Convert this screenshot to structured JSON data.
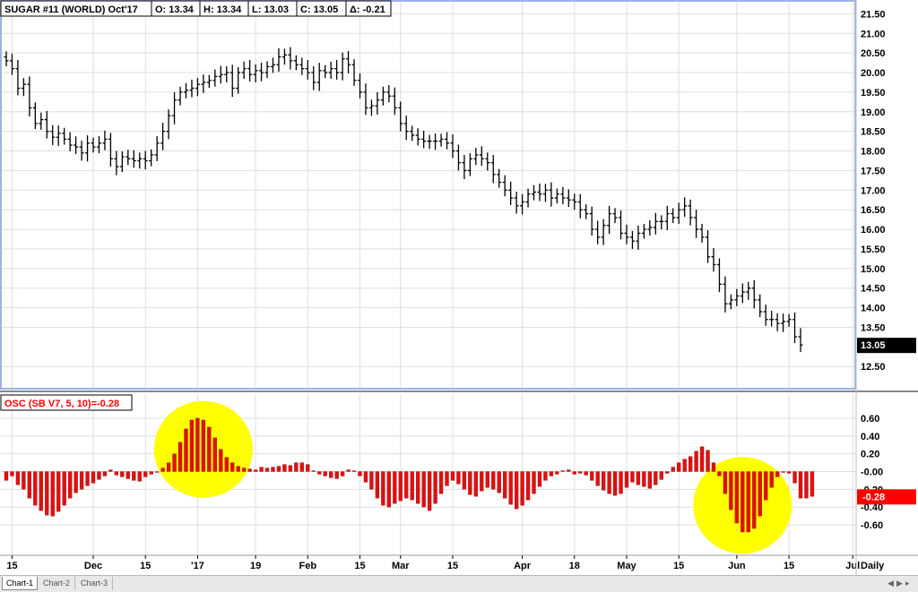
{
  "chart_data": [
    {
      "type": "ohlc",
      "header": {
        "symbol": "SUGAR #11 (WORLD) Oct'17",
        "open": "O: 13.34",
        "high": "H: 13.34",
        "low": "L: 13.03",
        "close": "C: 13.05",
        "change": "Δ: -0.21"
      },
      "ylim": [
        12.3,
        21.6
      ],
      "y_ticks": [
        "21.50",
        "21.00",
        "20.50",
        "20.00",
        "19.50",
        "19.00",
        "18.50",
        "18.00",
        "17.50",
        "17.00",
        "16.50",
        "16.00",
        "15.50",
        "15.00",
        "14.50",
        "14.00",
        "13.50",
        "12.50"
      ],
      "y_tick_values": [
        21.5,
        21.0,
        20.5,
        20.0,
        19.5,
        19.0,
        18.5,
        18.0,
        17.5,
        17.0,
        16.5,
        16.0,
        15.5,
        15.0,
        14.5,
        14.0,
        13.5,
        12.5
      ],
      "last_price": "13.05",
      "last_price_value": 13.05,
      "closes": [
        20.3,
        20.1,
        19.6,
        19.7,
        19.1,
        18.7,
        18.8,
        18.5,
        18.35,
        18.45,
        18.3,
        18.15,
        18.1,
        17.95,
        18.2,
        18.1,
        18.2,
        18.3,
        17.8,
        17.6,
        17.85,
        17.8,
        17.75,
        17.8,
        17.75,
        17.9,
        18.2,
        18.5,
        18.9,
        19.3,
        19.5,
        19.55,
        19.6,
        19.7,
        19.75,
        19.8,
        19.9,
        19.95,
        20.0,
        19.6,
        20.0,
        20.1,
        19.95,
        20.05,
        20.0,
        20.15,
        20.2,
        20.4,
        20.45,
        20.3,
        20.2,
        20.1,
        20.0,
        19.75,
        20.05,
        20.0,
        20.1,
        20.0,
        20.35,
        20.2,
        19.8,
        19.5,
        19.1,
        19.15,
        19.3,
        19.5,
        19.4,
        19.1,
        18.7,
        18.5,
        18.4,
        18.3,
        18.25,
        18.25,
        18.25,
        18.3,
        18.2,
        18.0,
        17.7,
        17.5,
        17.8,
        17.9,
        17.8,
        17.7,
        17.4,
        17.2,
        17.0,
        16.8,
        16.6,
        16.7,
        16.9,
        16.95,
        16.9,
        17.0,
        16.8,
        16.9,
        16.8,
        16.75,
        16.7,
        16.5,
        16.4,
        16.0,
        15.8,
        16.1,
        16.4,
        16.3,
        15.9,
        15.8,
        15.7,
        15.9,
        16.0,
        16.05,
        16.2,
        16.2,
        16.4,
        16.3,
        16.5,
        16.6,
        16.3,
        16.0,
        15.8,
        15.3,
        15.1,
        14.6,
        14.1,
        14.2,
        14.3,
        14.4,
        14.5,
        14.2,
        13.9,
        13.7,
        13.7,
        13.6,
        13.65,
        13.7,
        13.26,
        13.05
      ],
      "x_tick_labels": [
        "15",
        "Dec",
        "15",
        "'17",
        "19",
        "Feb",
        "15",
        "Mar",
        "15",
        "Apr",
        "18",
        "May",
        "15",
        "Jun",
        "15",
        "Jul"
      ],
      "x_tick_index": [
        1,
        15,
        24,
        33,
        43,
        52,
        61,
        68,
        77,
        89,
        98,
        107,
        116,
        126,
        135,
        146
      ],
      "x_axis_tag": "Daily"
    },
    {
      "type": "bar",
      "header": "OSC (SB V7, 5, 10)=-0.28",
      "ylim": [
        -0.72,
        0.68
      ],
      "y_ticks": [
        "0.60",
        "0.40",
        "0.20",
        "-0.00",
        "-0.20",
        "-0.40",
        "-0.60"
      ],
      "y_tick_values": [
        0.6,
        0.4,
        0.2,
        0.0,
        -0.2,
        -0.4,
        -0.6
      ],
      "last_value": "-0.28",
      "last_value_num": -0.28,
      "values": [
        -0.1,
        -0.05,
        -0.15,
        -0.2,
        -0.3,
        -0.38,
        -0.44,
        -0.49,
        -0.5,
        -0.45,
        -0.38,
        -0.3,
        -0.24,
        -0.2,
        -0.16,
        -0.13,
        -0.09,
        -0.05,
        0.02,
        -0.04,
        -0.06,
        -0.08,
        -0.1,
        -0.11,
        -0.06,
        -0.03,
        0.0,
        0.04,
        0.1,
        0.2,
        0.33,
        0.48,
        0.58,
        0.6,
        0.58,
        0.5,
        0.38,
        0.25,
        0.16,
        0.1,
        0.06,
        0.04,
        0.03,
        0.02,
        0.05,
        0.04,
        0.05,
        0.06,
        0.08,
        0.07,
        0.1,
        0.1,
        0.08,
        0.01,
        -0.03,
        -0.05,
        -0.07,
        -0.08,
        -0.05,
        0.02,
        0.01,
        -0.05,
        -0.12,
        -0.2,
        -0.3,
        -0.38,
        -0.4,
        -0.36,
        -0.33,
        -0.3,
        -0.32,
        -0.36,
        -0.4,
        -0.44,
        -0.36,
        -0.25,
        -0.16,
        -0.1,
        -0.14,
        -0.2,
        -0.26,
        -0.28,
        -0.22,
        -0.18,
        -0.2,
        -0.24,
        -0.3,
        -0.37,
        -0.42,
        -0.38,
        -0.32,
        -0.25,
        -0.17,
        -0.1,
        -0.05,
        -0.03,
        0.01,
        0.02,
        -0.03,
        -0.02,
        -0.04,
        -0.1,
        -0.16,
        -0.21,
        -0.25,
        -0.27,
        -0.25,
        -0.18,
        -0.12,
        -0.15,
        -0.17,
        -0.19,
        -0.15,
        -0.09,
        -0.02,
        0.05,
        0.1,
        0.14,
        0.17,
        0.23,
        0.28,
        0.24,
        0.1,
        -0.05,
        -0.25,
        -0.43,
        -0.58,
        -0.68,
        -0.68,
        -0.64,
        -0.5,
        -0.32,
        -0.18,
        -0.06,
        0.0,
        -0.02,
        -0.13,
        -0.3,
        -0.3,
        -0.28
      ],
      "highlight_circles": [
        {
          "center_index": 34,
          "center_value": 0.25
        },
        {
          "center_index": 127,
          "center_value": -0.38
        }
      ]
    }
  ],
  "colors": {
    "bar_ink": "#000000",
    "osc_bar": "#e01010",
    "osc_bar_dark": "#8b0000",
    "highlight": "#ffff00",
    "label_red": "#ff0000",
    "pane_border": "#9bb3e8",
    "grid": "#dedede",
    "last_price_bg": "#000000"
  },
  "tabs": [
    "Chart-1",
    "Chart-2",
    "Chart-3"
  ],
  "nav_icons": [
    "triangle-left-icon",
    "triangle-right-icon",
    "triangle-right-small-icon"
  ]
}
